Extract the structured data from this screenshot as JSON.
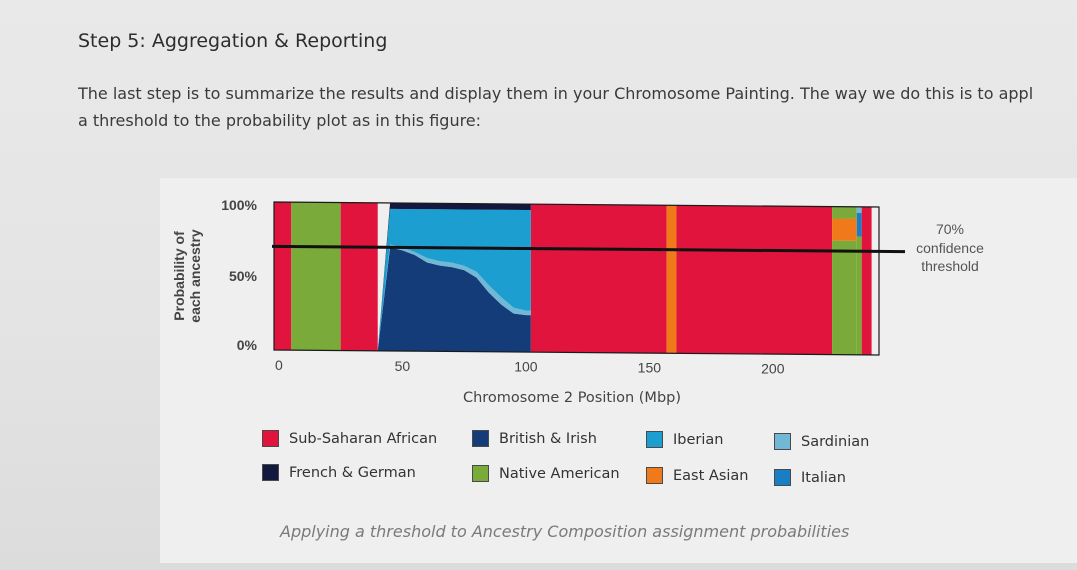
{
  "step_title": "Step 5: Aggregation & Reporting",
  "intro_line1": "The last step is to summarize the results and display them in your Chromosome Painting. The way we do this is to appl",
  "intro_line2": "a threshold to the probability plot as in this figure:",
  "caption": "Applying a threshold to Ancestry Composition assignment probabilities",
  "colors": {
    "sub_saharan": "#e0143c",
    "french_german": "#13183f",
    "native_american": "#7aab3a",
    "british_irish": "#143c78",
    "iberian": "#1c9fd0",
    "east_asian": "#f07a1a",
    "sardinian": "#70b8d6",
    "italian": "#1a7ec4"
  },
  "chart_data": {
    "type": "area",
    "title": "",
    "xlabel": "Chromosome 2 Position (Mbp)",
    "ylabel_line1": "Probability of",
    "ylabel_line2": "each ancestry",
    "x_ticks": [
      {
        "value": 0,
        "label": "0"
      },
      {
        "value": 50,
        "label": "50"
      },
      {
        "value": 100,
        "label": "100"
      },
      {
        "value": 150,
        "label": "150"
      },
      {
        "value": 200,
        "label": "200"
      }
    ],
    "y_ticks": [
      {
        "value": 100,
        "label": "100%"
      },
      {
        "value": 50,
        "label": "50%"
      },
      {
        "value": 0,
        "label": "0%"
      }
    ],
    "xlim": [
      -2,
      243
    ],
    "ylim": [
      0,
      100
    ],
    "threshold": {
      "value": 70,
      "label_line1": "70%",
      "label_line2": "confidence",
      "label_line3": "threshold"
    },
    "legend": [
      {
        "key": "sub_saharan",
        "label": "Sub-Saharan African"
      },
      {
        "key": "british_irish",
        "label": "British & Irish"
      },
      {
        "key": "iberian",
        "label": "Iberian"
      },
      {
        "key": "sardinian",
        "label": "Sardinian"
      },
      {
        "key": "french_german",
        "label": "French & German"
      },
      {
        "key": "native_american",
        "label": "Native American"
      },
      {
        "key": "east_asian",
        "label": "East Asian"
      },
      {
        "key": "italian",
        "label": "Italian"
      }
    ],
    "segments": [
      {
        "x0": -2,
        "x1": 5,
        "layers": [
          {
            "key": "sub_saharan",
            "from": 0,
            "to": 100
          }
        ]
      },
      {
        "x0": 5,
        "x1": 25,
        "layers": [
          {
            "key": "native_american",
            "from": 0,
            "to": 100
          }
        ]
      },
      {
        "x0": 25,
        "x1": 40,
        "layers": [
          {
            "key": "sub_saharan",
            "from": 0,
            "to": 100
          }
        ]
      },
      {
        "x0": 102,
        "x1": 157,
        "layers": [
          {
            "key": "sub_saharan",
            "from": 0,
            "to": 100
          }
        ]
      },
      {
        "x0": 157,
        "x1": 161,
        "layers": [
          {
            "key": "east_asian",
            "from": 0,
            "to": 100
          }
        ]
      },
      {
        "x0": 161,
        "x1": 224,
        "layers": [
          {
            "key": "sub_saharan",
            "from": 0,
            "to": 100
          }
        ]
      },
      {
        "x0": 224,
        "x1": 234,
        "layers": [
          {
            "key": "native_american",
            "from": 0,
            "to": 77
          },
          {
            "key": "east_asian",
            "from": 77,
            "to": 92
          },
          {
            "key": "native_american",
            "from": 92,
            "to": 100
          }
        ]
      },
      {
        "x0": 234,
        "x1": 236,
        "layers": [
          {
            "key": "native_american",
            "from": 0,
            "to": 80
          },
          {
            "key": "italian",
            "from": 80,
            "to": 96
          },
          {
            "key": "sardinian",
            "from": 96,
            "to": 100
          }
        ]
      },
      {
        "x0": 236,
        "x1": 240,
        "layers": [
          {
            "key": "sub_saharan",
            "from": 0,
            "to": 100
          }
        ]
      }
    ],
    "gradual_region": {
      "x": [
        40,
        45,
        50,
        55,
        60,
        65,
        70,
        75,
        80,
        85,
        90,
        95,
        100,
        102
      ],
      "british_irish_top": [
        0,
        70,
        68,
        65,
        60,
        58,
        57,
        55,
        50,
        40,
        32,
        26,
        25,
        25
      ],
      "sardinian_top": [
        0,
        72,
        70,
        67,
        63,
        61,
        60,
        58,
        54,
        45,
        37,
        30,
        28,
        28
      ],
      "iberian_top": [
        0,
        96,
        96,
        96,
        96,
        96,
        96,
        96,
        96,
        96,
        96,
        96,
        96,
        96
      ],
      "french_german_top": [
        0,
        100,
        100,
        100,
        100,
        100,
        100,
        100,
        100,
        100,
        100,
        100,
        100,
        100
      ]
    }
  }
}
